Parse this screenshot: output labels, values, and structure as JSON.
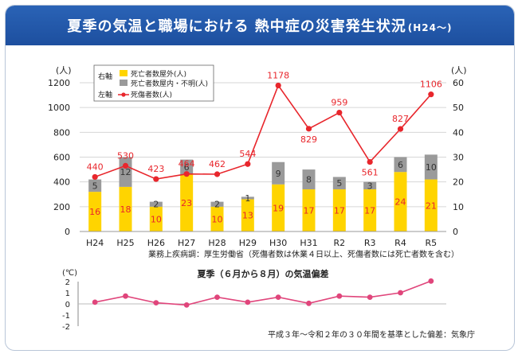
{
  "header": {
    "title": "夏季の気温と職場における 熱中症の災害発生状況",
    "title_suffix": "(H24〜)"
  },
  "chart_data": [
    {
      "type": "bar",
      "categories": [
        "H24",
        "H25",
        "H26",
        "H27",
        "H28",
        "H29",
        "H30",
        "H31",
        "R2",
        "R3",
        "R4",
        "R5"
      ],
      "left_axis": {
        "unit": "(人)",
        "ylim": [
          0,
          1200
        ],
        "ticks": [
          0,
          200,
          400,
          600,
          800,
          1000,
          1200
        ]
      },
      "right_axis": {
        "unit": "(人)",
        "ylim": [
          0,
          60
        ],
        "ticks": [
          0,
          10,
          20,
          30,
          40,
          50,
          60
        ]
      },
      "series": [
        {
          "name": "死亡者数屋外(人)",
          "axis": "right",
          "type": "stacked-bar",
          "color": "#ffd400",
          "values": [
            16,
            18,
            10,
            23,
            10,
            13,
            19,
            17,
            17,
            17,
            24,
            21
          ]
        },
        {
          "name": "死亡者数屋内・不明(人)",
          "axis": "right",
          "type": "stacked-bar",
          "color": "#9a9a9a",
          "values": [
            5,
            12,
            2,
            6,
            2,
            1,
            9,
            8,
            5,
            3,
            6,
            10
          ]
        },
        {
          "name": "死傷者数(人)",
          "axis": "left",
          "type": "line",
          "color": "#e8262c",
          "values": [
            440,
            530,
            423,
            464,
            462,
            544,
            1178,
            829,
            959,
            561,
            827,
            1106
          ]
        }
      ],
      "legend": {
        "right_axis_label": "右軸",
        "left_axis_label": "左軸"
      },
      "source_note": "業務上疾病調：厚生労働省（死傷者数は休業４日以上、死傷者数には死亡者数を含む）"
    },
    {
      "type": "line",
      "title": "夏季（６月から８月）の気温偏差",
      "y_unit": "(℃)",
      "ylim": [
        -2,
        2
      ],
      "ticks": [
        2,
        1,
        0,
        -1,
        -2
      ],
      "color": "#e0457b",
      "values": [
        0.15,
        0.7,
        0.1,
        -0.1,
        0.6,
        0.15,
        0.6,
        0.05,
        0.7,
        0.6,
        1.0,
        2.05
      ],
      "source_note": "平成３年〜令和２年の３０年間を基準とした偏差：気象庁"
    }
  ]
}
